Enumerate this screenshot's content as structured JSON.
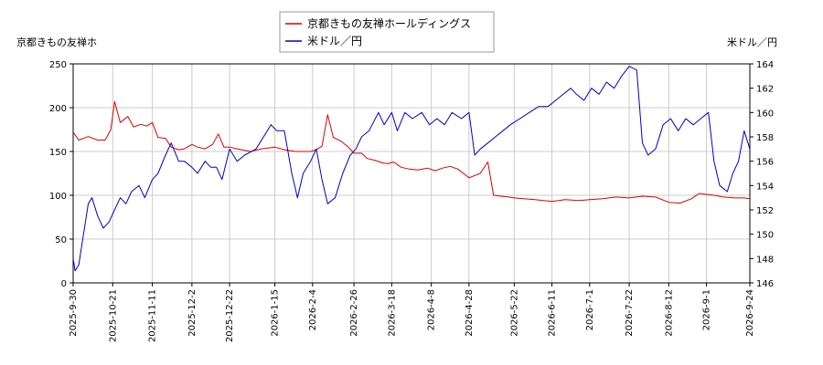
{
  "chart_data": {
    "type": "line",
    "y_left_label": "京都きもの友禅ホ",
    "y_right_label": "米ドル／円",
    "x_tick_labels": [
      "2025-9-30",
      "2025-10-21",
      "2025-11-11",
      "2025-12-2",
      "2025-12-22",
      "2026-1-15",
      "2026-2-4",
      "2026-2-26",
      "2026-3-18",
      "2026-4-8",
      "2026-4-28",
      "2026-5-22",
      "2026-6-11",
      "2026-7-1",
      "2026-7-22",
      "2026-8-12",
      "2026-9-1",
      "2026-9-24"
    ],
    "x_range": [
      "2025-9-30",
      "2026-9-24"
    ],
    "y_left_range": [
      0,
      250
    ],
    "y_left_ticks": [
      0,
      50,
      100,
      150,
      200,
      250
    ],
    "y_right_range": [
      146,
      164
    ],
    "y_right_ticks": [
      146,
      148,
      150,
      152,
      154,
      156,
      158,
      160,
      162,
      164
    ],
    "grid": true,
    "legend_position": "top-center",
    "series": [
      {
        "name": "京都きもの友禅ホールディングス",
        "axis": "left",
        "color": "#dd0000",
        "points": [
          [
            "2025-9-30",
            172
          ],
          [
            "2025-10-3",
            163
          ],
          [
            "2025-10-8",
            167
          ],
          [
            "2025-10-13",
            163
          ],
          [
            "2025-10-17",
            163
          ],
          [
            "2025-10-20",
            175
          ],
          [
            "2025-10-22",
            207
          ],
          [
            "2025-10-25",
            183
          ],
          [
            "2025-10-29",
            190
          ],
          [
            "2025-11-1",
            178
          ],
          [
            "2025-11-5",
            181
          ],
          [
            "2025-11-8",
            179
          ],
          [
            "2025-11-11",
            183
          ],
          [
            "2025-11-14",
            166
          ],
          [
            "2025-11-18",
            165
          ],
          [
            "2025-11-21",
            155
          ],
          [
            "2025-11-25",
            152
          ],
          [
            "2025-11-28",
            153
          ],
          [
            "2025-12-2",
            158
          ],
          [
            "2025-12-5",
            155
          ],
          [
            "2025-12-9",
            153
          ],
          [
            "2025-12-13",
            158
          ],
          [
            "2025-12-16",
            170
          ],
          [
            "2025-12-19",
            155
          ],
          [
            "2025-12-22",
            155
          ],
          [
            "2025-12-26",
            153
          ],
          [
            "2026-1-2",
            150
          ],
          [
            "2026-1-8",
            153
          ],
          [
            "2026-1-15",
            155
          ],
          [
            "2026-1-20",
            152
          ],
          [
            "2026-1-26",
            150
          ],
          [
            "2026-1-30",
            150
          ],
          [
            "2026-2-3",
            150
          ],
          [
            "2026-2-6",
            152
          ],
          [
            "2026-2-9",
            156
          ],
          [
            "2026-2-12",
            192
          ],
          [
            "2026-2-15",
            166
          ],
          [
            "2026-2-19",
            162
          ],
          [
            "2026-2-23",
            155
          ],
          [
            "2026-2-26",
            148
          ],
          [
            "2026-3-2",
            148
          ],
          [
            "2026-3-5",
            142
          ],
          [
            "2026-3-9",
            140
          ],
          [
            "2026-3-13",
            137
          ],
          [
            "2026-3-16",
            136
          ],
          [
            "2026-3-19",
            138
          ],
          [
            "2026-3-23",
            132
          ],
          [
            "2026-3-27",
            130
          ],
          [
            "2026-4-1",
            129
          ],
          [
            "2026-4-6",
            131
          ],
          [
            "2026-4-10",
            128
          ],
          [
            "2026-4-14",
            131
          ],
          [
            "2026-4-18",
            133
          ],
          [
            "2026-4-22",
            130
          ],
          [
            "2026-4-28",
            120
          ],
          [
            "2026-5-4",
            125
          ],
          [
            "2026-5-8",
            138
          ],
          [
            "2026-5-11",
            100
          ],
          [
            "2026-5-15",
            99
          ],
          [
            "2026-5-19",
            98
          ],
          [
            "2026-5-22",
            97
          ],
          [
            "2026-5-27",
            96
          ],
          [
            "2026-6-2",
            95
          ],
          [
            "2026-6-11",
            93
          ],
          [
            "2026-6-18",
            95
          ],
          [
            "2026-6-25",
            94
          ],
          [
            "2026-7-1",
            95
          ],
          [
            "2026-7-8",
            96
          ],
          [
            "2026-7-15",
            98
          ],
          [
            "2026-7-22",
            97
          ],
          [
            "2026-7-29",
            99
          ],
          [
            "2026-8-5",
            98
          ],
          [
            "2026-8-12",
            92
          ],
          [
            "2026-8-18",
            91
          ],
          [
            "2026-8-24",
            96
          ],
          [
            "2026-8-28",
            102
          ],
          [
            "2026-9-1",
            101
          ],
          [
            "2026-9-5",
            100
          ],
          [
            "2026-9-10",
            98
          ],
          [
            "2026-9-16",
            97
          ],
          [
            "2026-9-21",
            97
          ],
          [
            "2026-9-24",
            96
          ]
        ]
      },
      {
        "name": "米ドル／円",
        "axis": "right",
        "color": "#0000cc",
        "points": [
          [
            "2025-9-30",
            148.0
          ],
          [
            "2025-10-1",
            147.0
          ],
          [
            "2025-10-3",
            147.5
          ],
          [
            "2025-10-5",
            149.5
          ],
          [
            "2025-10-8",
            152.5
          ],
          [
            "2025-10-10",
            153.0
          ],
          [
            "2025-10-13",
            151.5
          ],
          [
            "2025-10-16",
            150.5
          ],
          [
            "2025-10-19",
            151.0
          ],
          [
            "2025-10-22",
            152.0
          ],
          [
            "2025-10-25",
            153.0
          ],
          [
            "2025-10-28",
            152.5
          ],
          [
            "2025-10-31",
            153.5
          ],
          [
            "2025-11-4",
            154.0
          ],
          [
            "2025-11-7",
            153.0
          ],
          [
            "2025-11-11",
            154.5
          ],
          [
            "2025-11-14",
            155.0
          ],
          [
            "2025-11-18",
            156.5
          ],
          [
            "2025-11-21",
            157.5
          ],
          [
            "2025-11-25",
            156.0
          ],
          [
            "2025-11-28",
            156.0
          ],
          [
            "2025-12-2",
            155.5
          ],
          [
            "2025-12-5",
            155.0
          ],
          [
            "2025-12-9",
            156.0
          ],
          [
            "2025-12-12",
            155.5
          ],
          [
            "2025-12-15",
            155.5
          ],
          [
            "2025-12-18",
            154.5
          ],
          [
            "2025-12-22",
            157.0
          ],
          [
            "2025-12-26",
            156.0
          ],
          [
            "2025-12-30",
            156.5
          ],
          [
            "2026-1-5",
            157.0
          ],
          [
            "2026-1-9",
            158.0
          ],
          [
            "2026-1-13",
            159.0
          ],
          [
            "2026-1-16",
            158.5
          ],
          [
            "2026-1-20",
            158.5
          ],
          [
            "2026-1-24",
            155.0
          ],
          [
            "2026-1-27",
            153.0
          ],
          [
            "2026-1-30",
            155.0
          ],
          [
            "2026-2-3",
            156.0
          ],
          [
            "2026-2-6",
            157.0
          ],
          [
            "2026-2-9",
            154.5
          ],
          [
            "2026-2-12",
            152.5
          ],
          [
            "2026-2-16",
            153.0
          ],
          [
            "2026-2-20",
            155.0
          ],
          [
            "2026-2-24",
            156.5
          ],
          [
            "2026-2-27",
            157.0
          ],
          [
            "2026-3-2",
            158.0
          ],
          [
            "2026-3-6",
            158.5
          ],
          [
            "2026-3-11",
            160.0
          ],
          [
            "2026-3-14",
            159.0
          ],
          [
            "2026-3-18",
            160.0
          ],
          [
            "2026-3-21",
            158.5
          ],
          [
            "2026-3-25",
            160.0
          ],
          [
            "2026-3-29",
            159.5
          ],
          [
            "2026-4-3",
            160.0
          ],
          [
            "2026-4-7",
            159.0
          ],
          [
            "2026-4-11",
            159.5
          ],
          [
            "2026-4-15",
            159.0
          ],
          [
            "2026-4-19",
            160.0
          ],
          [
            "2026-4-24",
            159.5
          ],
          [
            "2026-4-28",
            160.0
          ],
          [
            "2026-5-1",
            156.5
          ],
          [
            "2026-5-4",
            157.0
          ],
          [
            "2026-5-8",
            157.5
          ],
          [
            "2026-5-12",
            158.0
          ],
          [
            "2026-5-16",
            158.5
          ],
          [
            "2026-5-20",
            159.0
          ],
          [
            "2026-5-25",
            159.5
          ],
          [
            "2026-5-30",
            160.0
          ],
          [
            "2026-6-4",
            160.5
          ],
          [
            "2026-6-9",
            160.5
          ],
          [
            "2026-6-13",
            161.0
          ],
          [
            "2026-6-17",
            161.5
          ],
          [
            "2026-6-21",
            162.0
          ],
          [
            "2026-6-24",
            161.5
          ],
          [
            "2026-6-28",
            161.0
          ],
          [
            "2026-7-2",
            162.0
          ],
          [
            "2026-7-6",
            161.5
          ],
          [
            "2026-7-10",
            162.5
          ],
          [
            "2026-7-14",
            162.0
          ],
          [
            "2026-7-18",
            163.0
          ],
          [
            "2026-7-22",
            163.8
          ],
          [
            "2026-7-26",
            163.5
          ],
          [
            "2026-7-29",
            157.5
          ],
          [
            "2026-8-1",
            156.5
          ],
          [
            "2026-8-5",
            157.0
          ],
          [
            "2026-8-9",
            159.0
          ],
          [
            "2026-8-13",
            159.5
          ],
          [
            "2026-8-17",
            158.5
          ],
          [
            "2026-8-21",
            159.5
          ],
          [
            "2026-8-25",
            159.0
          ],
          [
            "2026-8-29",
            159.5
          ],
          [
            "2026-9-2",
            160.0
          ],
          [
            "2026-9-5",
            156.0
          ],
          [
            "2026-9-8",
            154.0
          ],
          [
            "2026-9-12",
            153.5
          ],
          [
            "2026-9-15",
            155.0
          ],
          [
            "2026-9-18",
            156.0
          ],
          [
            "2026-9-21",
            158.5
          ],
          [
            "2026-9-24",
            157.0
          ]
        ]
      }
    ]
  }
}
